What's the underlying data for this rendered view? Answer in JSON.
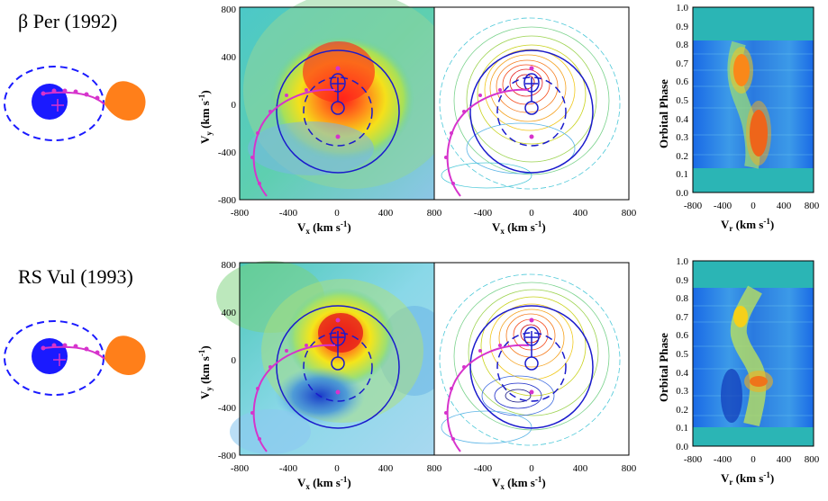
{
  "figure": {
    "rows": [
      {
        "system_name": "β Per (1992)",
        "tomogram": {
          "xlabel_main": "V",
          "xlabel_sub": "x",
          "xlabel_unit": " (km s",
          "xlabel_exp": "-1",
          "xlabel_close": ")",
          "ylabel_main": "V",
          "ylabel_sub": "y",
          "ylabel_unit": " (km s",
          "ylabel_exp": "-1",
          "ylabel_close": ")",
          "xticks": [
            "-800",
            "-400",
            "0",
            "400",
            "800"
          ],
          "yticks": [
            "800",
            "400",
            "0",
            "-400",
            "-800"
          ]
        },
        "trailed": {
          "ylabel": "Orbital Phase",
          "xlabel_main": "V",
          "xlabel_sub": "r",
          "xlabel_unit": " (km s",
          "xlabel_exp": "-1",
          "xlabel_close": ")",
          "xticks": [
            "-800",
            "-400",
            "0",
            "400",
            "800"
          ],
          "yticks": [
            "1.0",
            "0.9",
            "0.8",
            "0.7",
            "0.6",
            "0.5",
            "0.4",
            "0.3",
            "0.2",
            "0.1",
            "0.0"
          ]
        }
      },
      {
        "system_name": "RS Vul (1993)",
        "tomogram": {
          "xlabel_main": "V",
          "xlabel_sub": "x",
          "xlabel_unit": " (km s",
          "xlabel_exp": "-1",
          "xlabel_close": ")",
          "ylabel_main": "V",
          "ylabel_sub": "y",
          "ylabel_unit": " (km s",
          "ylabel_exp": "-1",
          "ylabel_close": ")",
          "xticks": [
            "-800",
            "-400",
            "0",
            "400",
            "800"
          ],
          "yticks": [
            "800",
            "400",
            "0",
            "-400",
            "-800"
          ]
        },
        "trailed": {
          "ylabel": "Orbital Phase",
          "xlabel_main": "V",
          "xlabel_sub": "r",
          "xlabel_unit": " (km s",
          "xlabel_exp": "-1",
          "xlabel_close": ")",
          "xticks": [
            "-800",
            "-400",
            "0",
            "400",
            "800"
          ],
          "yticks": [
            "1.0",
            "0.9",
            "0.8",
            "0.7",
            "0.6",
            "0.5",
            "0.4",
            "0.3",
            "0.2",
            "0.1",
            "0.0"
          ]
        }
      }
    ],
    "colors": {
      "primary_star": "#1a1aff",
      "secondary_star": "#ff7f1a",
      "stream": "#d633cc",
      "roche": "#1a1acc",
      "background_cyan": "#2bb5b5"
    }
  }
}
